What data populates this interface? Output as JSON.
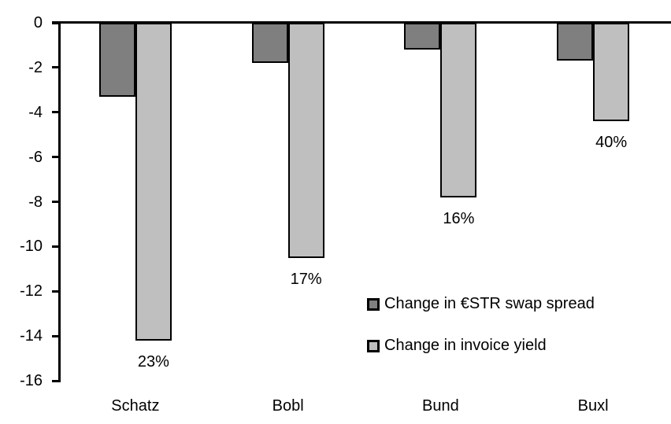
{
  "chart_data": {
    "type": "bar",
    "title": "",
    "xlabel": "",
    "ylabel": "",
    "categories": [
      "Schatz",
      "Bobl",
      "Bund",
      "Buxl"
    ],
    "series": [
      {
        "name": "Change in €STR swap spread",
        "color": "#7F7F7F",
        "values": [
          -3.3,
          -1.8,
          -1.2,
          -1.7
        ]
      },
      {
        "name": "Change in invoice yield",
        "color": "#BFBFBF",
        "values": [
          -14.2,
          -10.5,
          -7.8,
          -4.4
        ],
        "data_labels": [
          "23%",
          "17%",
          "16%",
          "40%"
        ]
      }
    ],
    "ylim": [
      -16,
      0
    ],
    "yticks": [
      0,
      -2,
      -4,
      -6,
      -8,
      -10,
      -12,
      -14,
      -16
    ],
    "grid": false,
    "legend_position": "inside-right-middle",
    "bar_border_color": "#000000",
    "axis_color": "#000000",
    "background_color": "#FFFFFF"
  }
}
